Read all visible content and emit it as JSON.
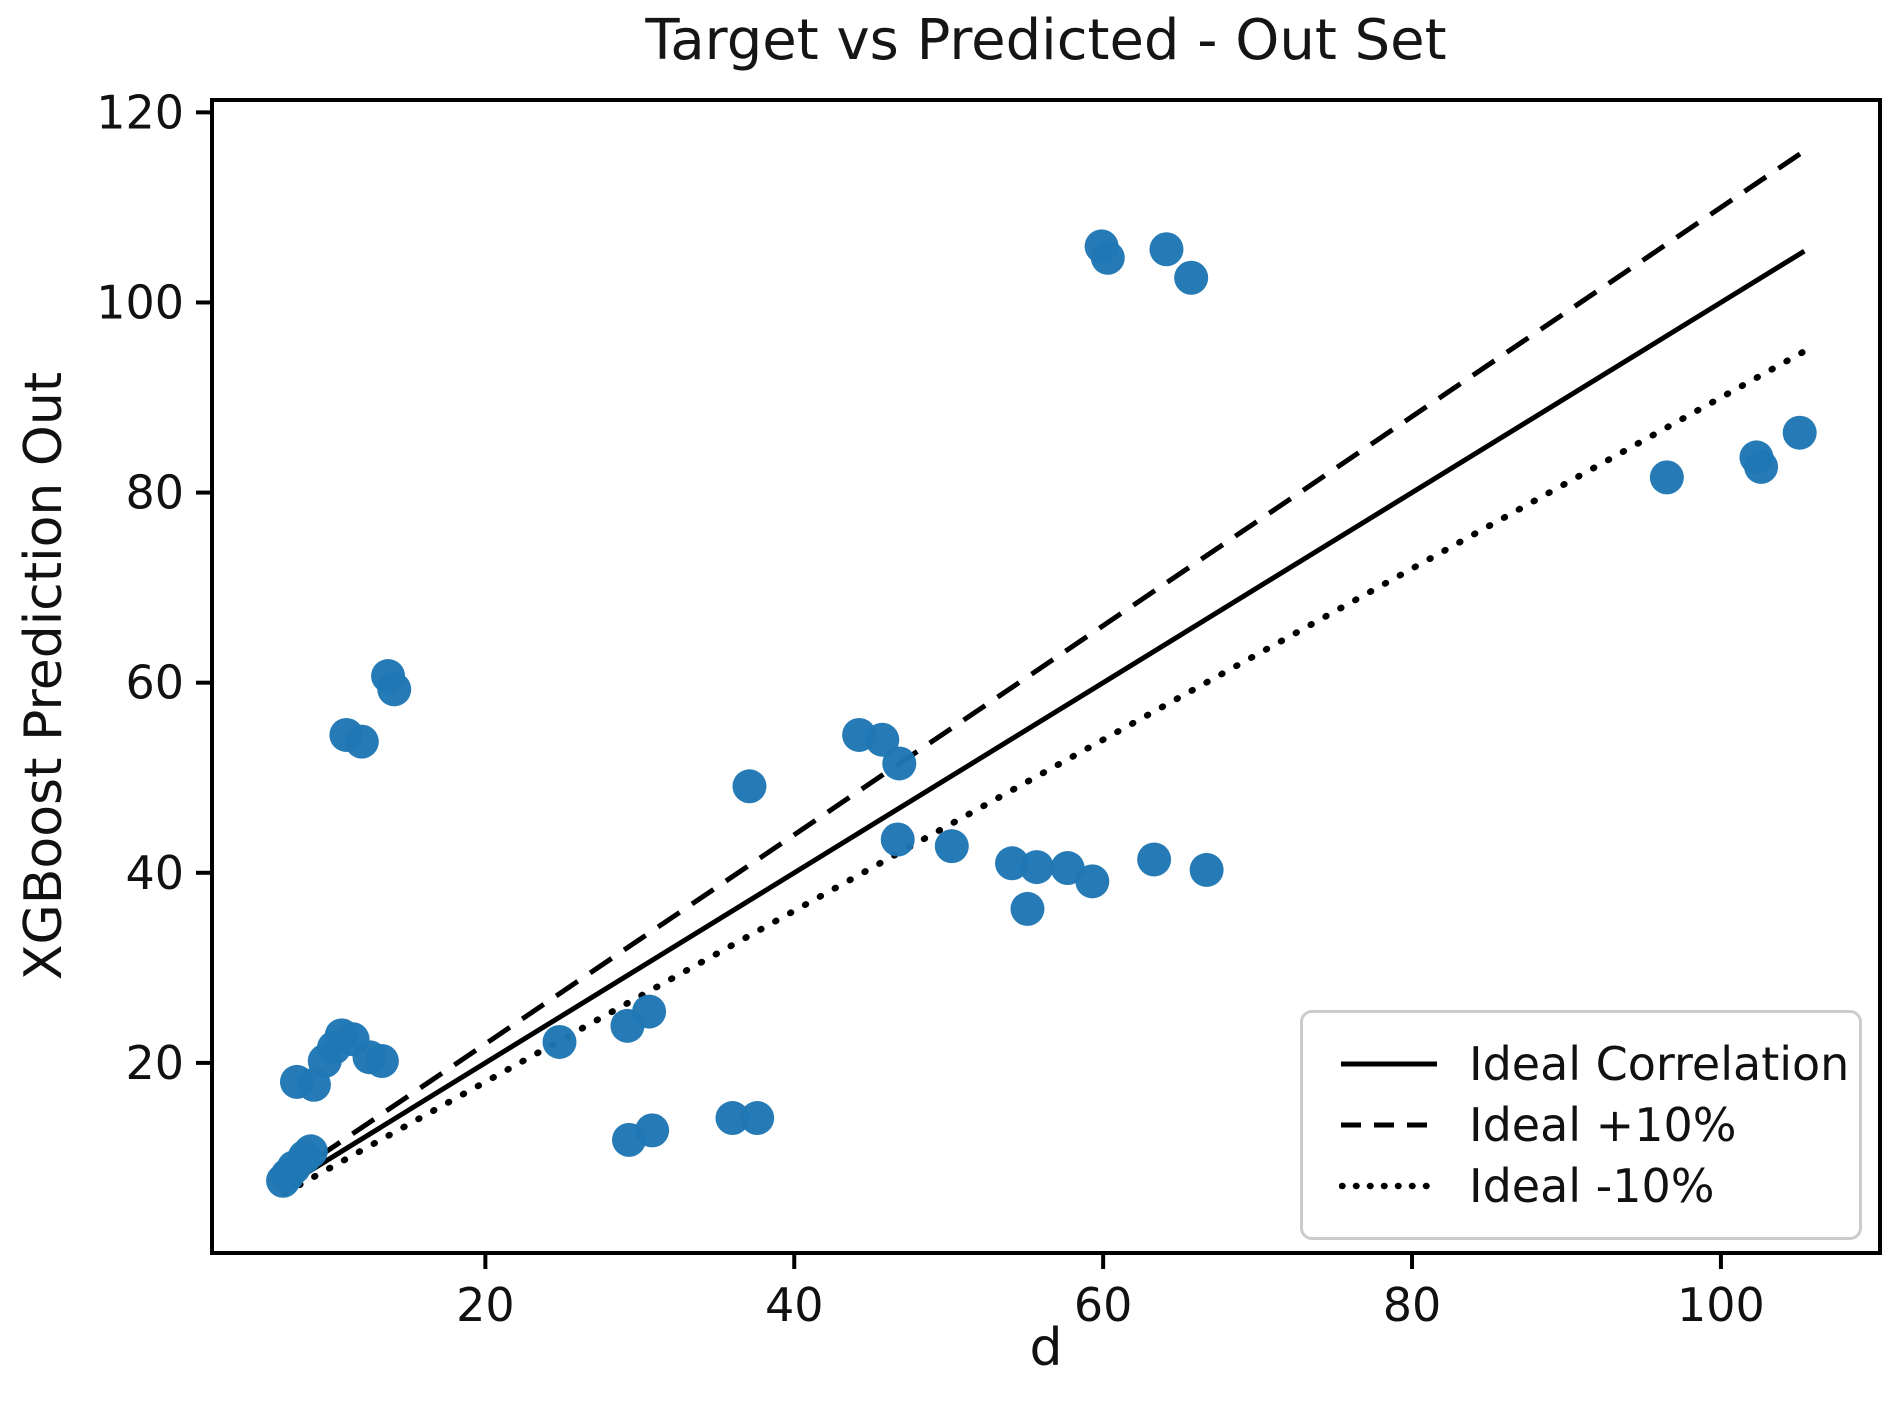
{
  "chart_data": {
    "type": "scatter",
    "title": "Target vs Predicted - Out Set",
    "xlabel": "d",
    "ylabel": "XGBoost Prediction Out",
    "xlim": [
      2.3,
      110.3
    ],
    "ylim": [
      0,
      121.3
    ],
    "xticks": [
      20,
      40,
      60,
      80,
      100
    ],
    "yticks": [
      20,
      40,
      60,
      80,
      100,
      120
    ],
    "grid": false,
    "marker_color": "#1f77b4",
    "axis_color": "#000000",
    "legend": {
      "position": "lower right",
      "entries": [
        {
          "label": "Ideal Correlation",
          "style": "solid"
        },
        {
          "label": "Ideal +10%",
          "style": "dashed"
        },
        {
          "label": "Ideal -10%",
          "style": "dotted"
        }
      ]
    },
    "lines": [
      {
        "name": "Ideal Correlation",
        "style": "solid",
        "slope": 1.0,
        "x_range": [
          7.0,
          105.4
        ]
      },
      {
        "name": "Ideal +10%",
        "style": "dashed",
        "slope": 1.1,
        "x_range": [
          7.0,
          105.4
        ]
      },
      {
        "name": "Ideal -10%",
        "style": "dotted",
        "slope": 0.9,
        "x_range": [
          7.0,
          105.4
        ]
      }
    ],
    "points": [
      [
        6.9,
        7.6
      ],
      [
        7.2,
        8.2
      ],
      [
        7.6,
        9.0
      ],
      [
        8.3,
        10.1
      ],
      [
        8.7,
        10.7
      ],
      [
        7.8,
        18.0
      ],
      [
        8.9,
        17.7
      ],
      [
        9.6,
        20.2
      ],
      [
        10.2,
        21.6
      ],
      [
        10.7,
        22.9
      ],
      [
        11.4,
        22.5
      ],
      [
        12.5,
        20.6
      ],
      [
        13.3,
        20.2
      ],
      [
        11.0,
        54.5
      ],
      [
        12.0,
        53.8
      ],
      [
        13.7,
        60.7
      ],
      [
        14.1,
        59.3
      ],
      [
        24.8,
        22.2
      ],
      [
        29.2,
        23.9
      ],
      [
        30.6,
        25.4
      ],
      [
        29.3,
        11.9
      ],
      [
        30.8,
        12.9
      ],
      [
        36.0,
        14.2
      ],
      [
        37.6,
        14.2
      ],
      [
        37.1,
        49.1
      ],
      [
        44.2,
        54.5
      ],
      [
        45.7,
        54.0
      ],
      [
        46.8,
        51.5
      ],
      [
        46.7,
        43.5
      ],
      [
        50.2,
        42.8
      ],
      [
        54.1,
        41.0
      ],
      [
        55.7,
        40.6
      ],
      [
        57.7,
        40.5
      ],
      [
        59.3,
        39.1
      ],
      [
        55.1,
        36.2
      ],
      [
        63.3,
        41.4
      ],
      [
        66.7,
        40.3
      ],
      [
        59.9,
        105.9
      ],
      [
        60.3,
        104.7
      ],
      [
        64.1,
        105.6
      ],
      [
        65.7,
        102.6
      ],
      [
        96.5,
        81.6
      ],
      [
        102.3,
        83.7
      ],
      [
        102.6,
        82.7
      ],
      [
        105.1,
        86.3
      ]
    ]
  }
}
